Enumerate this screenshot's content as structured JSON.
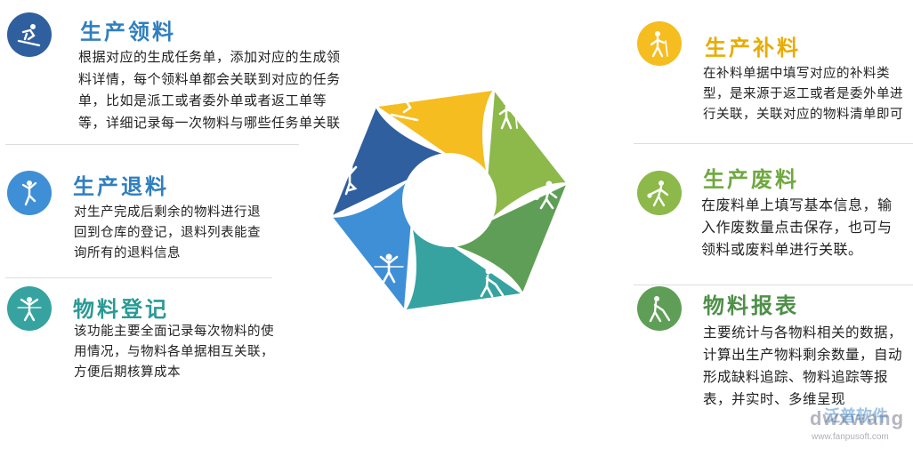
{
  "colors": {
    "dark_blue": "#2f5f9e",
    "blue": "#3f8fd6",
    "teal": "#36a3a0",
    "yellow": "#f5bd1f",
    "green": "#8db84a",
    "dark_green": "#5f9e56",
    "title_blue": "#2f7fbf",
    "title_teal": "#2a9a95",
    "title_yellow": "#e8ac00",
    "title_green": "#6fa83f",
    "title_dark_green": "#4f8f49"
  },
  "sections": {
    "production_picking": {
      "icon": "skiing-icon",
      "title": "生产领料",
      "desc": "根据对应的生成任务单，添加对应的生成领料详情，每个领料单都会关联到对应的任务单，比如是派工或者委外单或者返工单等等，详细记录每一次物料与哪些任务单关联"
    },
    "production_return": {
      "icon": "ballet-dancer-icon",
      "title": "生产退料",
      "desc": "对生产完成后剩余的物料进行退回到仓库的登记，退料列表能查询所有的退料信息"
    },
    "material_register": {
      "icon": "finish-line-runner-icon",
      "title": "物料登记",
      "desc": "该功能主要全面记录每次物料的使用情况，与物料各单据相互关联，方便后期核算成本"
    },
    "production_supplement": {
      "icon": "hiker-icon",
      "title": "生产补料",
      "desc": "在补料单据中填写对应的补料类型，是来源于返工或者是委外单进行关联，关联对应的物料清单即可"
    },
    "production_scrap": {
      "icon": "bowler-icon",
      "title": "生产废料",
      "desc": "在废料单上填写基本信息，输入作废数量点击保存，也可与领料或废料单进行关联。"
    },
    "material_report": {
      "icon": "golfer-icon",
      "title": "物料报表",
      "desc": "主要统计与各物料相关的数据，计算出生产物料剩余数量，自动形成缺料追踪、物料追踪等报表，并实时、多维呈现"
    }
  },
  "watermark": {
    "latin": "dwxwang",
    "cn": "泛普软件",
    "url": "www.fanpusoft.com"
  }
}
